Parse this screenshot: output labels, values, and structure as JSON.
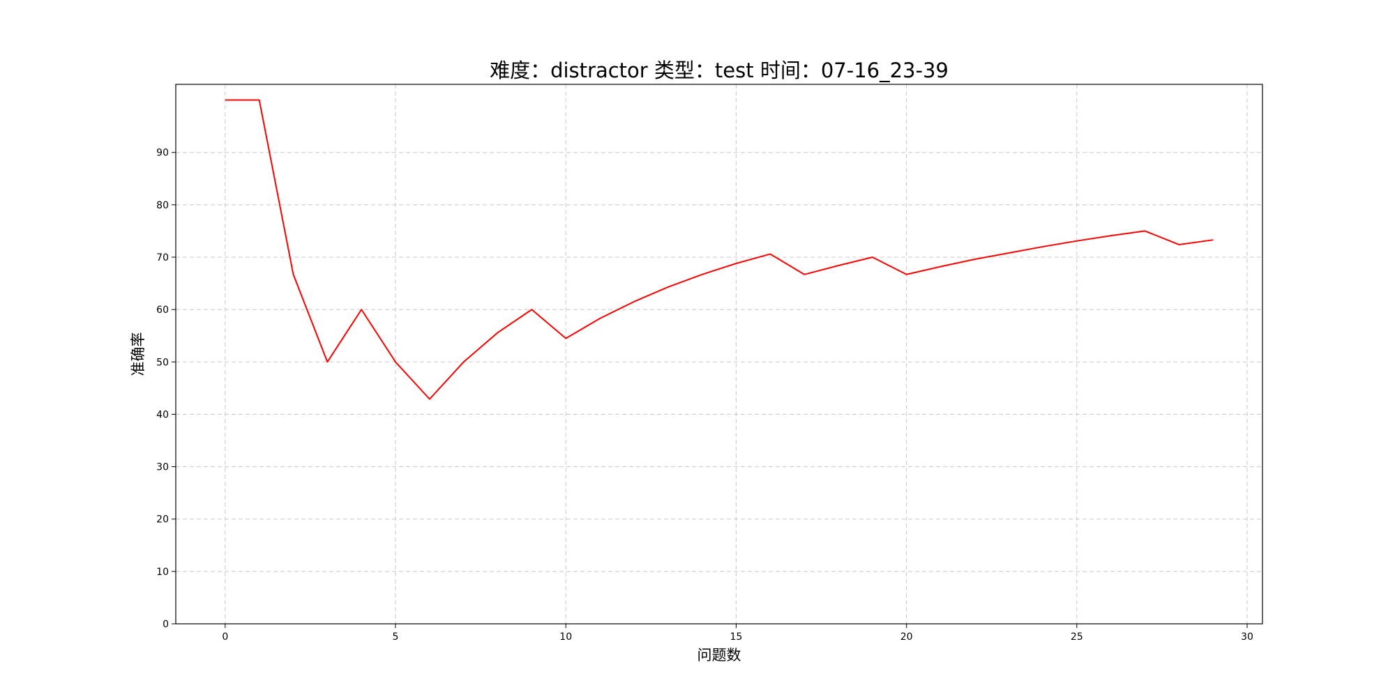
{
  "chart_data": {
    "type": "line",
    "title": "难度：distractor 类型：test 时间：07-16_23-39",
    "xlabel": "问题数",
    "ylabel": "准确率",
    "xlim": [
      -1.45,
      30.45
    ],
    "ylim": [
      0,
      103
    ],
    "xticks": [
      0,
      5,
      10,
      15,
      20,
      25,
      30
    ],
    "yticks": [
      0,
      10,
      20,
      30,
      40,
      50,
      60,
      70,
      80,
      90
    ],
    "grid": true,
    "x": [
      0,
      1,
      2,
      3,
      4,
      5,
      6,
      7,
      8,
      9,
      10,
      11,
      12,
      13,
      14,
      15,
      16,
      17,
      18,
      19,
      20,
      21,
      22,
      23,
      24,
      25,
      26,
      27,
      28,
      29
    ],
    "series": [
      {
        "color": "#ff0000",
        "values": [
          100,
          100,
          66.7,
          50,
          60,
          50,
          42.9,
          50,
          55.6,
          60,
          54.5,
          58.3,
          61.5,
          64.3,
          66.7,
          68.8,
          70.6,
          66.7,
          68.4,
          70,
          66.7,
          68.2,
          69.6,
          70.8,
          72,
          73.1,
          74.1,
          75,
          72.4,
          73.3
        ]
      }
    ]
  }
}
